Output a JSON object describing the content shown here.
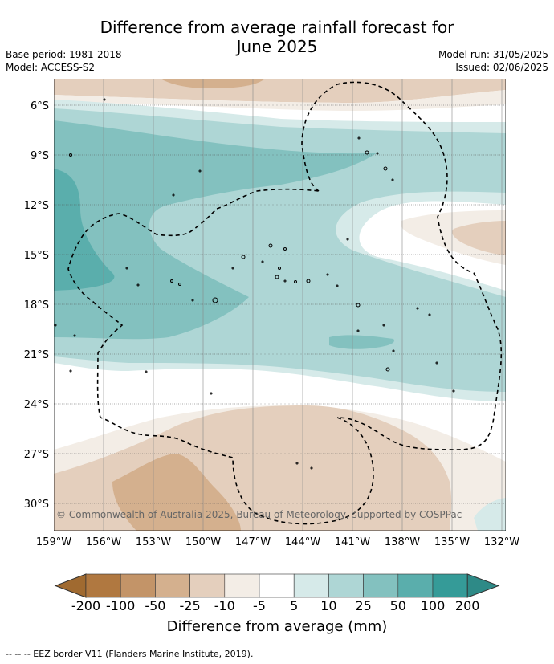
{
  "title_line1": "Difference from average rainfall forecast for",
  "title_line2": "June 2025",
  "base_period": "Base period: 1981-2018",
  "model": "Model: ACCESS-S2",
  "model_run": "Model run: 31/05/2025",
  "issued": "Issued: 02/06/2025",
  "copyright": "© Commonwealth of Australia 2025, Bureau of Meteorology, supported by COSPPac",
  "lat_ticks": [
    "6°S",
    "9°S",
    "12°S",
    "15°S",
    "18°S",
    "21°S",
    "24°S",
    "27°S",
    "30°S"
  ],
  "lon_ticks": [
    "159°W",
    "156°W",
    "153°W",
    "150°W",
    "147°W",
    "144°W",
    "141°W",
    "138°W",
    "135°W",
    "132°W"
  ],
  "colorbar": {
    "labels": [
      "-200",
      "-100",
      "-50",
      "-25",
      "-10",
      "-5",
      "5",
      "10",
      "25",
      "50",
      "100",
      "200"
    ],
    "colors": [
      "#b07840",
      "#c39468",
      "#d4b08e",
      "#e4cfbd",
      "#f3ede6",
      "#ffffff",
      "#d6eae9",
      "#aed6d5",
      "#83c1bf",
      "#5aaeac",
      "#359b98"
    ],
    "under_color": "#a06a30",
    "over_color": "#2e8a87",
    "title": "Difference from average (mm)"
  },
  "footnote": "--  --  -- EEZ border V11 (Flanders Marine Institute, 2019)."
}
